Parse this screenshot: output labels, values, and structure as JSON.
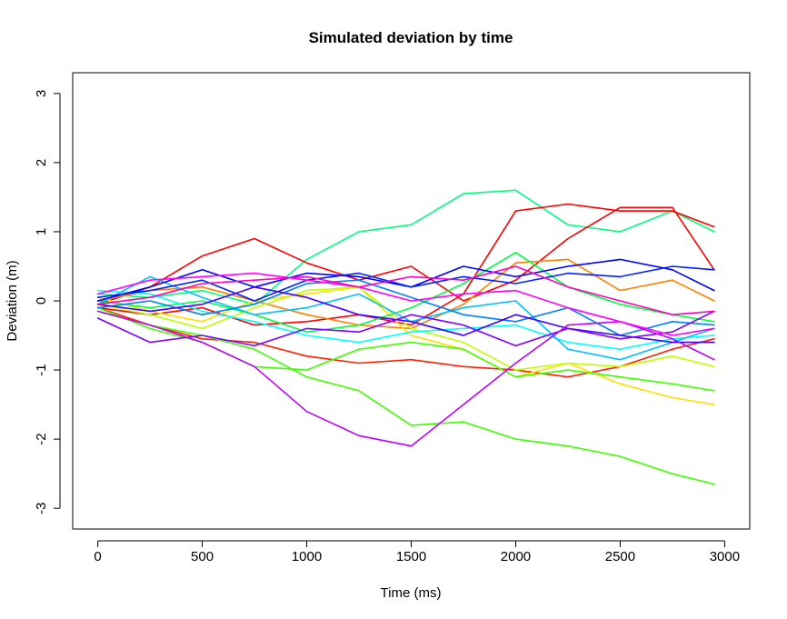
{
  "chart_data": {
    "type": "line",
    "title": "Simulated deviation by time",
    "xlabel": "Time (ms)",
    "ylabel": "Deviation (m)",
    "xlim": [
      -120,
      3120
    ],
    "ylim": [
      -3.3,
      3.3
    ],
    "x_ticks": [
      0,
      500,
      1000,
      1500,
      2000,
      2500,
      3000
    ],
    "y_ticks": [
      -3,
      -2,
      -1,
      0,
      1,
      2,
      3
    ],
    "x_tick_labels": [
      "0",
      "500",
      "1000",
      "1500",
      "2000",
      "2500",
      "3000"
    ],
    "y_tick_labels": [
      "-3",
      "-2",
      "-1",
      "0",
      "1",
      "2",
      "3"
    ],
    "grid": false,
    "legend": "none",
    "series": [
      {
        "color": "#00FF80",
        "x": [
          0,
          250,
          500,
          750,
          1000,
          1250,
          1500,
          1750,
          2000,
          2250,
          2500,
          2750,
          2950
        ],
        "y": [
          0.1,
          0.05,
          0.15,
          -0.05,
          0.6,
          1.0,
          1.1,
          1.55,
          1.6,
          1.1,
          1.0,
          1.3,
          1.0
        ]
      },
      {
        "color": "#FF0000",
        "x": [
          0,
          250,
          500,
          750,
          1000,
          1250,
          1500,
          1750,
          2000,
          2250,
          2500,
          2750,
          2950
        ],
        "y": [
          -0.1,
          -0.2,
          -0.1,
          -0.35,
          -0.3,
          -0.2,
          -0.35,
          0.1,
          1.3,
          1.4,
          1.3,
          1.3,
          1.07
        ]
      },
      {
        "color": "#FF0000",
        "x": [
          0,
          250,
          500,
          750,
          1000,
          1250,
          1500,
          1750,
          2000,
          2250,
          2500,
          2750,
          2950
        ],
        "y": [
          -0.05,
          0.2,
          0.65,
          0.9,
          0.55,
          0.3,
          0.5,
          0.0,
          0.3,
          0.9,
          1.35,
          1.35,
          0.45
        ]
      },
      {
        "color": "#FF2000",
        "x": [
          0,
          250,
          500,
          750,
          1000,
          1250,
          1500,
          1750,
          2000,
          2250,
          2500,
          2750,
          2950
        ],
        "y": [
          -0.1,
          -0.35,
          -0.55,
          -0.6,
          -0.8,
          -0.9,
          -0.85,
          -0.95,
          -1.0,
          -1.1,
          -0.95,
          -0.7,
          -0.55
        ]
      },
      {
        "color": "#FF8000",
        "x": [
          0,
          250,
          500,
          750,
          1000,
          1250,
          1500,
          1750,
          2000,
          2250,
          2500,
          2750,
          2950
        ],
        "y": [
          0.0,
          0.15,
          0.2,
          0.0,
          -0.2,
          -0.35,
          -0.4,
          -0.05,
          0.55,
          0.6,
          0.15,
          0.3,
          0.0
        ]
      },
      {
        "color": "#FFE000",
        "x": [
          0,
          250,
          500,
          750,
          1000,
          1250,
          1500,
          1750,
          2000,
          2250,
          2500,
          2750,
          2950
        ],
        "y": [
          0.05,
          -0.15,
          -0.3,
          0.0,
          0.1,
          0.2,
          -0.5,
          -0.7,
          -1.1,
          -0.9,
          -1.2,
          -1.4,
          -1.5
        ]
      },
      {
        "color": "#C0FF00",
        "x": [
          0,
          250,
          500,
          750,
          1000,
          1250,
          1500,
          1750,
          2000,
          2250,
          2500,
          2750,
          2950
        ],
        "y": [
          -0.05,
          -0.2,
          -0.4,
          -0.1,
          0.15,
          0.2,
          -0.4,
          -0.6,
          -1.0,
          -0.9,
          -0.95,
          -0.8,
          -0.95
        ]
      },
      {
        "color": "#40FF00",
        "x": [
          0,
          250,
          500,
          750,
          1000,
          1250,
          1500,
          1750,
          2000,
          2250,
          2500,
          2750,
          2950
        ],
        "y": [
          -0.15,
          -0.35,
          -0.5,
          -0.7,
          -1.1,
          -1.3,
          -1.8,
          -1.75,
          -2.0,
          -2.1,
          -2.25,
          -2.5,
          -2.65
        ]
      },
      {
        "color": "#40FF00",
        "x": [
          0,
          250,
          500,
          750,
          1000,
          1250,
          1500,
          1750,
          2000,
          2250,
          2500,
          2750,
          2950
        ],
        "y": [
          -0.1,
          -0.4,
          -0.6,
          -0.95,
          -1.0,
          -0.7,
          -0.6,
          -0.7,
          -1.1,
          -1.0,
          -1.1,
          -1.2,
          -1.3
        ]
      },
      {
        "color": "#00FF40",
        "x": [
          0,
          250,
          500,
          750,
          1000,
          1250,
          1500,
          1750,
          2000,
          2250,
          2500,
          2750,
          2950
        ],
        "y": [
          0.0,
          -0.1,
          0.0,
          -0.2,
          -0.45,
          -0.35,
          -0.1,
          0.25,
          0.7,
          0.2,
          -0.05,
          -0.2,
          -0.3
        ]
      },
      {
        "color": "#00FFFF",
        "x": [
          0,
          250,
          500,
          750,
          1000,
          1250,
          1500,
          1750,
          2000,
          2250,
          2500,
          2750,
          2950
        ],
        "y": [
          0.15,
          0.1,
          -0.15,
          -0.3,
          -0.5,
          -0.6,
          -0.45,
          -0.4,
          -0.35,
          -0.6,
          -0.7,
          -0.55,
          -0.5
        ]
      },
      {
        "color": "#00C0FF",
        "x": [
          0,
          250,
          500,
          750,
          1000,
          1250,
          1500,
          1750,
          2000,
          2250,
          2500,
          2750,
          2950
        ],
        "y": [
          -0.05,
          0.35,
          0.05,
          -0.2,
          -0.1,
          0.1,
          -0.3,
          -0.1,
          0.0,
          -0.7,
          -0.85,
          -0.6,
          -0.4
        ]
      },
      {
        "color": "#0080FF",
        "x": [
          0,
          250,
          500,
          750,
          1000,
          1250,
          1500,
          1750,
          2000,
          2250,
          2500,
          2750,
          2950
        ],
        "y": [
          -0.1,
          0.0,
          -0.2,
          -0.05,
          0.25,
          0.3,
          0.05,
          -0.2,
          -0.3,
          -0.1,
          -0.5,
          -0.3,
          -0.35
        ]
      },
      {
        "color": "#0000FF",
        "x": [
          0,
          250,
          500,
          750,
          1000,
          1250,
          1500,
          1750,
          2000,
          2250,
          2500,
          2750,
          2950
        ],
        "y": [
          0.0,
          0.2,
          0.45,
          0.2,
          0.4,
          0.35,
          0.2,
          0.5,
          0.35,
          0.5,
          0.6,
          0.45,
          0.15
        ]
      },
      {
        "color": "#0020FF",
        "x": [
          0,
          250,
          500,
          750,
          1000,
          1250,
          1500,
          1750,
          2000,
          2250,
          2500,
          2750,
          2950
        ],
        "y": [
          0.05,
          0.15,
          0.3,
          0.0,
          0.3,
          0.4,
          0.2,
          0.35,
          0.25,
          0.4,
          0.35,
          0.5,
          0.45
        ]
      },
      {
        "color": "#4000FF",
        "x": [
          0,
          250,
          500,
          750,
          1000,
          1250,
          1500,
          1750,
          2000,
          2250,
          2500,
          2750,
          2950
        ],
        "y": [
          -0.05,
          -0.15,
          -0.05,
          0.2,
          0.05,
          -0.2,
          -0.3,
          -0.5,
          -0.2,
          -0.4,
          -0.5,
          -0.6,
          -0.6
        ]
      },
      {
        "color": "#8000FF",
        "x": [
          0,
          250,
          500,
          750,
          1000,
          1250,
          1500,
          1750,
          2000,
          2250,
          2500,
          2750,
          2950
        ],
        "y": [
          -0.25,
          -0.6,
          -0.5,
          -0.65,
          -0.4,
          -0.45,
          -0.2,
          -0.35,
          -0.65,
          -0.4,
          -0.55,
          -0.45,
          -0.15
        ]
      },
      {
        "color": "#C000FF",
        "x": [
          0,
          250,
          500,
          750,
          1000,
          1250,
          1500,
          1750,
          2000,
          2250,
          2500,
          2750,
          2950
        ],
        "y": [
          -0.15,
          -0.35,
          -0.6,
          -0.95,
          -1.6,
          -1.95,
          -2.1,
          -1.5,
          -0.9,
          -0.35,
          -0.3,
          -0.55,
          -0.85
        ]
      },
      {
        "color": "#FF00FF",
        "x": [
          0,
          250,
          500,
          750,
          1000,
          1250,
          1500,
          1750,
          2000,
          2250,
          2500,
          2750,
          2950
        ],
        "y": [
          0.1,
          0.3,
          0.35,
          0.4,
          0.3,
          0.2,
          0.0,
          0.1,
          0.15,
          -0.1,
          -0.3,
          -0.5,
          -0.4
        ]
      },
      {
        "color": "#FF00C0",
        "x": [
          0,
          250,
          500,
          750,
          1000,
          1250,
          1500,
          1750,
          2000,
          2250,
          2500,
          2750,
          2950
        ],
        "y": [
          -0.05,
          0.05,
          0.25,
          0.3,
          0.35,
          0.2,
          0.35,
          0.3,
          0.5,
          0.2,
          0.0,
          -0.2,
          -0.15
        ]
      }
    ]
  }
}
